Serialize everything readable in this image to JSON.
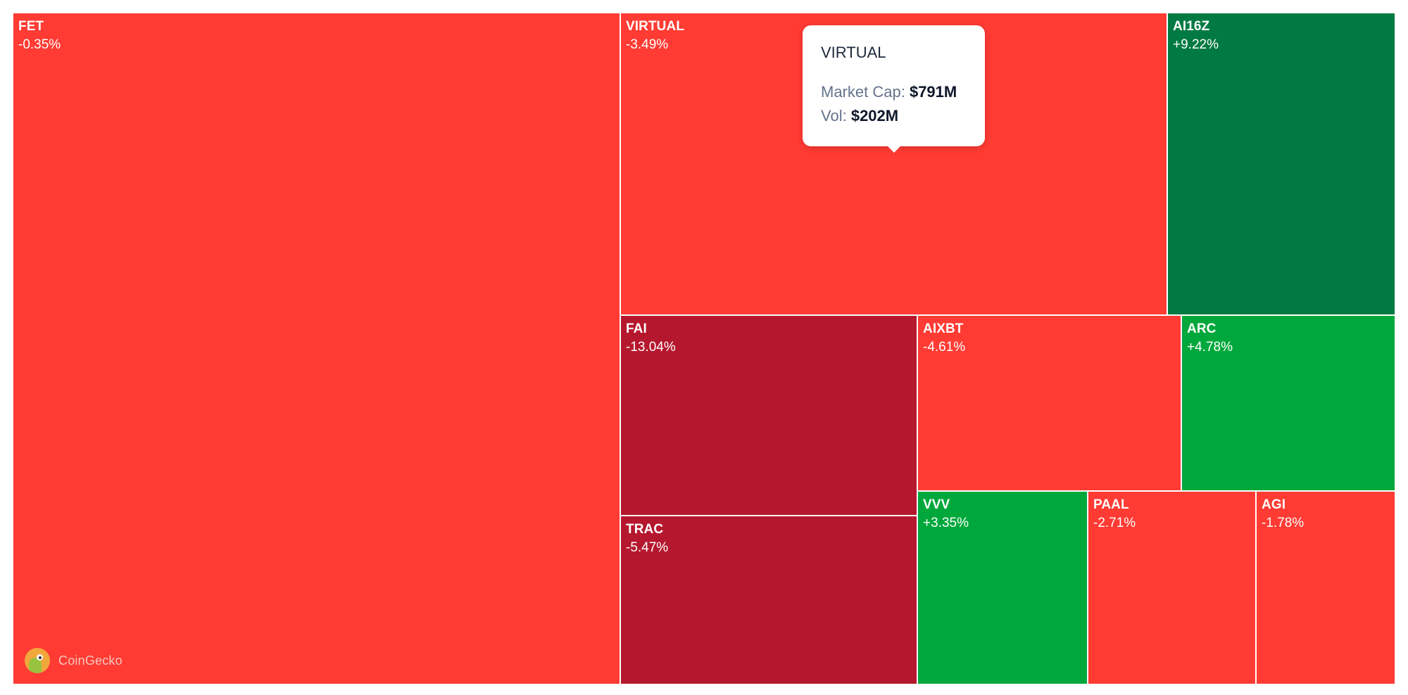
{
  "chart_data": {
    "type": "treemap",
    "tiles": [
      {
        "symbol": "FET",
        "change": "-0.35%",
        "color": "#ff3b33"
      },
      {
        "symbol": "VIRTUAL",
        "change": "-3.49%",
        "color": "#ff3b33"
      },
      {
        "symbol": "AI16Z",
        "change": "+9.22%",
        "color": "#007a42"
      },
      {
        "symbol": "FAI",
        "change": "-13.04%",
        "color": "#b5182e"
      },
      {
        "symbol": "TRAC",
        "change": "-5.47%",
        "color": "#b5182e"
      },
      {
        "symbol": "AIXBT",
        "change": "-4.61%",
        "color": "#ff3b33"
      },
      {
        "symbol": "ARC",
        "change": "+4.78%",
        "color": "#00a83c"
      },
      {
        "symbol": "VVV",
        "change": "+3.35%",
        "color": "#00a83c"
      },
      {
        "symbol": "PAAL",
        "change": "-2.71%",
        "color": "#ff3b33"
      },
      {
        "symbol": "AGI",
        "change": "-1.78%",
        "color": "#ff3b33"
      }
    ]
  },
  "tooltip": {
    "title": "VIRTUAL",
    "market_cap_label": "Market Cap:",
    "market_cap_value": "$791M",
    "vol_label": "Vol:",
    "vol_value": "$202M"
  },
  "brand": {
    "name": "CoinGecko",
    "logo_icon": "coingecko-logo-icon"
  }
}
